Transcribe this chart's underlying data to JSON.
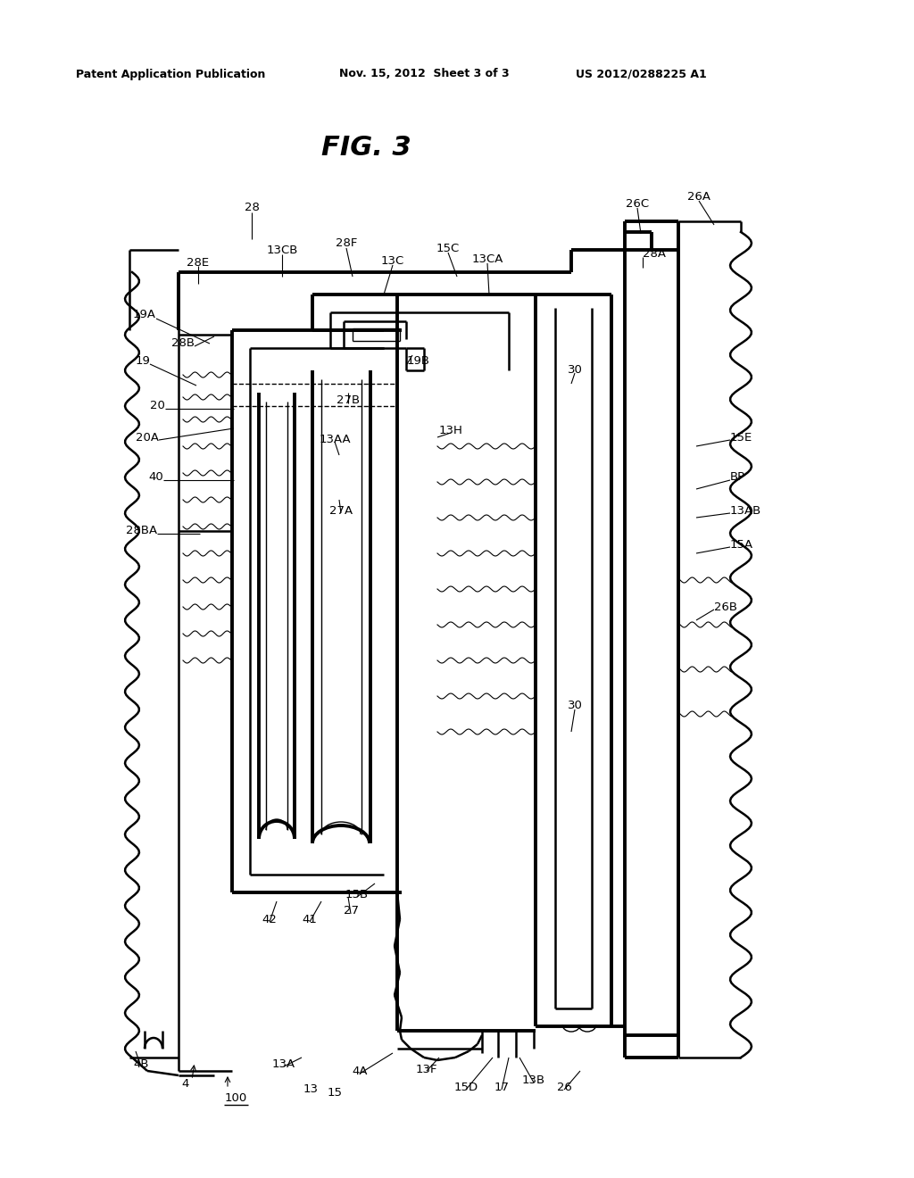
{
  "title": "FIG. 3",
  "header_left": "Patent Application Publication",
  "header_center": "Nov. 15, 2012  Sheet 3 of 3",
  "header_right": "US 2012/0288225 A1",
  "bg_color": "#ffffff",
  "fig_width": 10.24,
  "fig_height": 13.2,
  "dpi": 100
}
